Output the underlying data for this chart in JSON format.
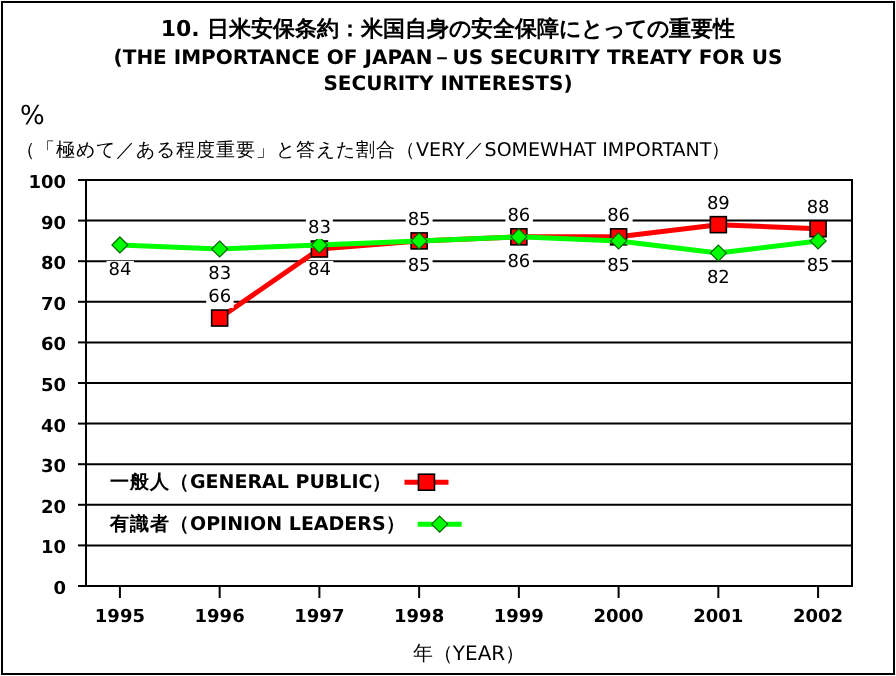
{
  "chart_data": {
    "type": "line",
    "title": "10. 日米安保条約：米国自身の安全保障にとっての重要性",
    "subtitle": "(THE IMPORTANCE OF JAPAN－US SECURITY TREATY FOR US SECURITY INTERESTS)",
    "ylabel": "%",
    "annotations": [
      "（「極めて／ある程度重要」と答えた割合（VERY／SOMEWHAT IMPORTANT）"
    ],
    "xlabel": "年（YEAR）",
    "categories": [
      "1995",
      "1996",
      "1997",
      "1998",
      "1999",
      "2000",
      "2001",
      "2002"
    ],
    "series": [
      {
        "name": "一般人（GENERAL PUBLIC）",
        "color": "#ff0000",
        "marker": "square",
        "values": [
          null,
          66,
          83,
          85,
          86,
          86,
          89,
          88
        ]
      },
      {
        "name": "有識者（OPINION LEADERS）",
        "color": "#00ff00",
        "marker": "diamond",
        "values": [
          84,
          83,
          84,
          85,
          86,
          85,
          82,
          85
        ]
      }
    ],
    "ylim": [
      0,
      100
    ],
    "yticks": [
      0,
      10,
      20,
      30,
      40,
      50,
      60,
      70,
      80,
      90,
      100
    ],
    "grid": "y",
    "legend": "bottom left",
    "data_labels": true
  }
}
